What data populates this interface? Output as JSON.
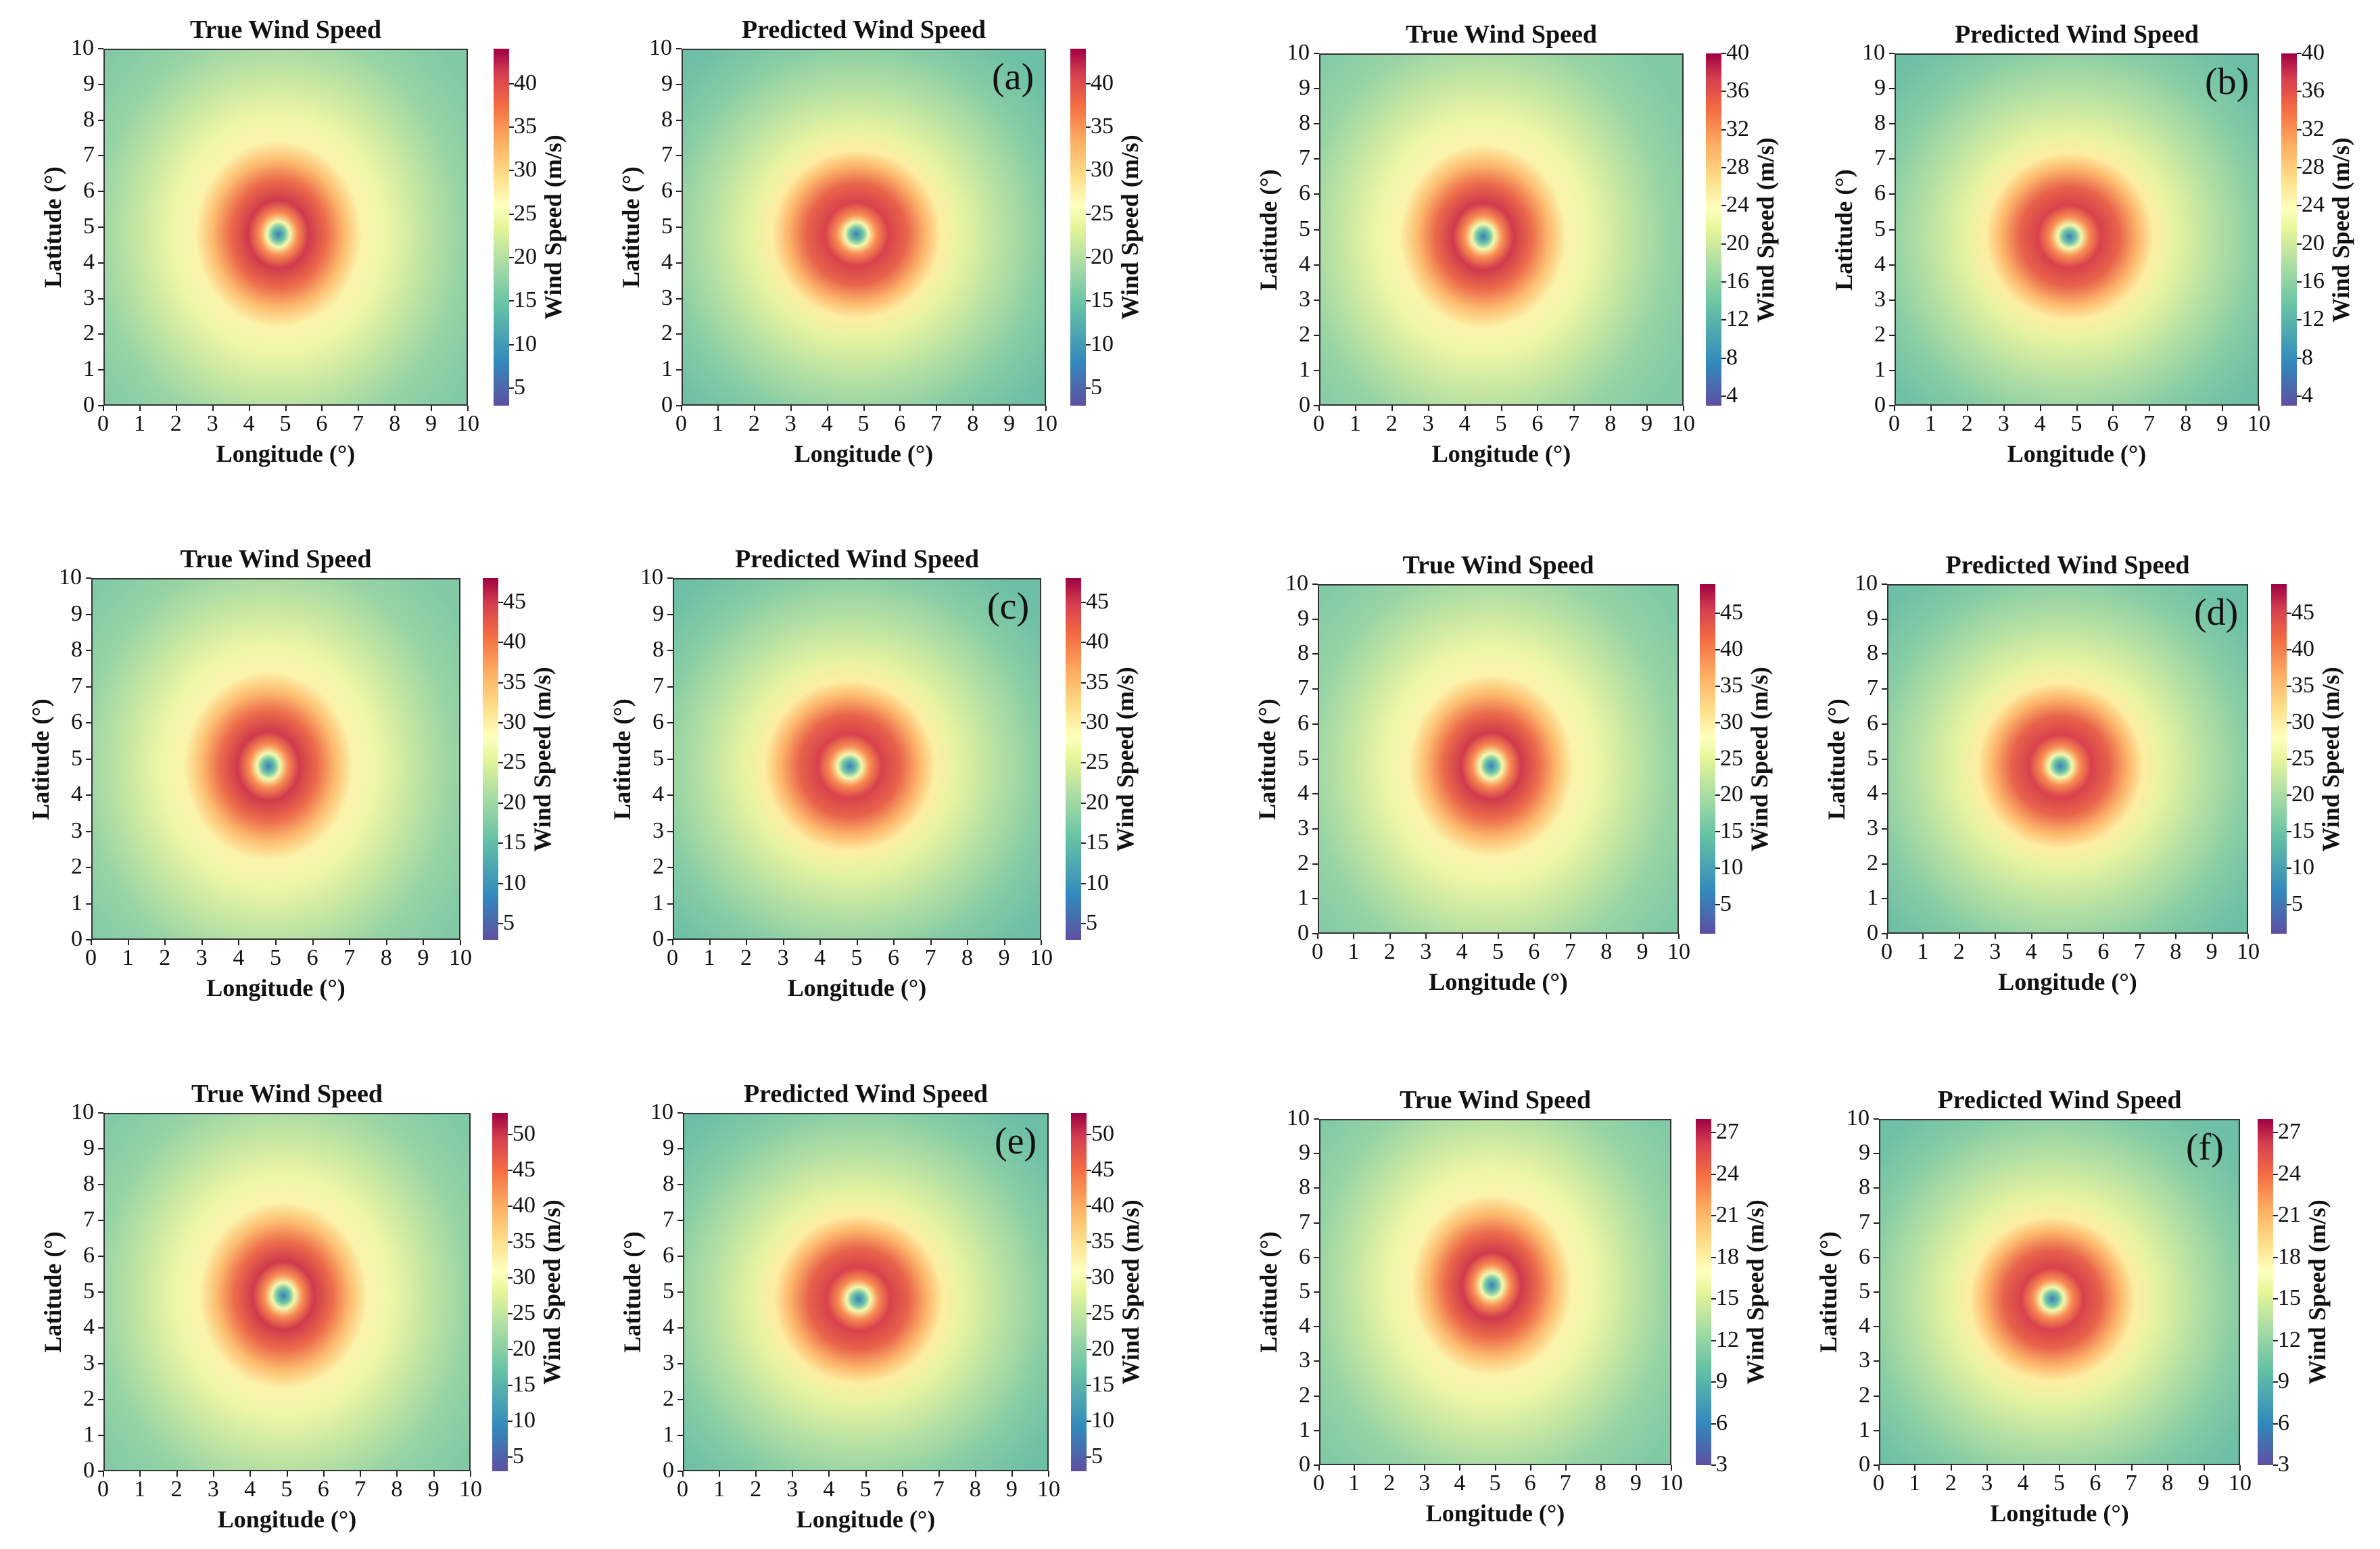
{
  "axis_labels": {
    "x": "Longitude (°)",
    "y": "Latitude (°)",
    "colorbar": "Wind Speed (m/s)"
  },
  "chart_data": [
    {
      "type": "heatmap",
      "panel": "(a)",
      "title": "True Wind Speed",
      "xlim": [
        0,
        10
      ],
      "ylim": [
        0,
        10
      ],
      "xticks": [
        "0",
        "1",
        "2",
        "3",
        "4",
        "5",
        "6",
        "7",
        "8",
        "9",
        "10"
      ],
      "yticks": [
        "0",
        "1",
        "2",
        "3",
        "4",
        "5",
        "6",
        "7",
        "8",
        "9",
        "10"
      ],
      "clim": [
        3,
        44
      ],
      "cticks": [
        "5",
        "10",
        "15",
        "20",
        "25",
        "30",
        "35",
        "40"
      ],
      "storm_center": [
        4.8,
        4.8
      ]
    },
    {
      "type": "heatmap",
      "panel": "(a)",
      "title": "Predicted Wind Speed",
      "label": "(a)",
      "xlim": [
        0,
        10
      ],
      "ylim": [
        0,
        10
      ],
      "xticks": [
        "0",
        "1",
        "2",
        "3",
        "4",
        "5",
        "6",
        "7",
        "8",
        "9",
        "10"
      ],
      "yticks": [
        "0",
        "1",
        "2",
        "3",
        "4",
        "5",
        "6",
        "7",
        "8",
        "9",
        "10"
      ],
      "clim": [
        3,
        44
      ],
      "cticks": [
        "5",
        "10",
        "15",
        "20",
        "25",
        "30",
        "35",
        "40"
      ],
      "storm_center": [
        4.8,
        4.8
      ]
    },
    {
      "type": "heatmap",
      "panel": "(b)",
      "title": "True Wind Speed",
      "xlim": [
        0,
        10
      ],
      "ylim": [
        0,
        10
      ],
      "xticks": [
        "0",
        "1",
        "2",
        "3",
        "4",
        "5",
        "6",
        "7",
        "8",
        "9",
        "10"
      ],
      "yticks": [
        "0",
        "1",
        "2",
        "3",
        "4",
        "5",
        "6",
        "7",
        "8",
        "9",
        "10"
      ],
      "clim": [
        3,
        40
      ],
      "cticks": [
        "4",
        "8",
        "12",
        "16",
        "20",
        "24",
        "28",
        "32",
        "36",
        "40"
      ],
      "storm_center": [
        4.5,
        4.8
      ]
    },
    {
      "type": "heatmap",
      "panel": "(b)",
      "title": "Predicted Wind Speed",
      "label": "(b)",
      "xlim": [
        0,
        10
      ],
      "ylim": [
        0,
        10
      ],
      "xticks": [
        "0",
        "1",
        "2",
        "3",
        "4",
        "5",
        "6",
        "7",
        "8",
        "9",
        "10"
      ],
      "yticks": [
        "0",
        "1",
        "2",
        "3",
        "4",
        "5",
        "6",
        "7",
        "8",
        "9",
        "10"
      ],
      "clim": [
        3,
        40
      ],
      "cticks": [
        "4",
        "8",
        "12",
        "16",
        "20",
        "24",
        "28",
        "32",
        "36",
        "40"
      ],
      "storm_center": [
        4.8,
        4.8
      ]
    },
    {
      "type": "heatmap",
      "panel": "(c)",
      "title": "True Wind Speed",
      "xlim": [
        0,
        10
      ],
      "ylim": [
        0,
        10
      ],
      "xticks": [
        "0",
        "1",
        "2",
        "3",
        "4",
        "5",
        "6",
        "7",
        "8",
        "9",
        "10"
      ],
      "yticks": [
        "0",
        "1",
        "2",
        "3",
        "4",
        "5",
        "6",
        "7",
        "8",
        "9",
        "10"
      ],
      "clim": [
        3,
        48
      ],
      "cticks": [
        "5",
        "10",
        "15",
        "20",
        "25",
        "30",
        "35",
        "40",
        "45"
      ],
      "storm_center": [
        4.8,
        4.8
      ]
    },
    {
      "type": "heatmap",
      "panel": "(c)",
      "title": "Predicted Wind Speed",
      "label": "(c)",
      "xlim": [
        0,
        10
      ],
      "ylim": [
        0,
        10
      ],
      "xticks": [
        "0",
        "1",
        "2",
        "3",
        "4",
        "5",
        "6",
        "7",
        "8",
        "9",
        "10"
      ],
      "yticks": [
        "0",
        "1",
        "2",
        "3",
        "4",
        "5",
        "6",
        "7",
        "8",
        "9",
        "10"
      ],
      "clim": [
        3,
        48
      ],
      "cticks": [
        "5",
        "10",
        "15",
        "20",
        "25",
        "30",
        "35",
        "40",
        "45"
      ],
      "storm_center": [
        4.8,
        4.8
      ]
    },
    {
      "type": "heatmap",
      "panel": "(d)",
      "title": "True Wind Speed",
      "xlim": [
        0,
        10
      ],
      "ylim": [
        0,
        10
      ],
      "xticks": [
        "0",
        "1",
        "2",
        "3",
        "4",
        "5",
        "6",
        "7",
        "8",
        "9",
        "10"
      ],
      "yticks": [
        "0",
        "1",
        "2",
        "3",
        "4",
        "5",
        "6",
        "7",
        "8",
        "9",
        "10"
      ],
      "clim": [
        1,
        49
      ],
      "cticks": [
        "5",
        "10",
        "15",
        "20",
        "25",
        "30",
        "35",
        "40",
        "45"
      ],
      "storm_center": [
        4.8,
        4.8
      ]
    },
    {
      "type": "heatmap",
      "panel": "(d)",
      "title": "Predicted Wind Speed",
      "label": "(d)",
      "xlim": [
        0,
        10
      ],
      "ylim": [
        0,
        10
      ],
      "xticks": [
        "0",
        "1",
        "2",
        "3",
        "4",
        "5",
        "6",
        "7",
        "8",
        "9",
        "10"
      ],
      "yticks": [
        "0",
        "1",
        "2",
        "3",
        "4",
        "5",
        "6",
        "7",
        "8",
        "9",
        "10"
      ],
      "clim": [
        1,
        49
      ],
      "cticks": [
        "5",
        "10",
        "15",
        "20",
        "25",
        "30",
        "35",
        "40",
        "45"
      ],
      "storm_center": [
        4.8,
        4.8
      ]
    },
    {
      "type": "heatmap",
      "panel": "(e)",
      "title": "True Wind Speed",
      "xlim": [
        0,
        10
      ],
      "ylim": [
        0,
        10
      ],
      "xticks": [
        "0",
        "1",
        "2",
        "3",
        "4",
        "5",
        "6",
        "7",
        "8",
        "9",
        "10"
      ],
      "yticks": [
        "0",
        "1",
        "2",
        "3",
        "4",
        "5",
        "6",
        "7",
        "8",
        "9",
        "10"
      ],
      "clim": [
        3,
        53
      ],
      "cticks": [
        "5",
        "10",
        "15",
        "20",
        "25",
        "30",
        "35",
        "40",
        "45",
        "50"
      ],
      "storm_center": [
        4.9,
        4.9
      ]
    },
    {
      "type": "heatmap",
      "panel": "(e)",
      "title": "Predicted Wind Speed",
      "label": "(e)",
      "xlim": [
        0,
        10
      ],
      "ylim": [
        0,
        10
      ],
      "xticks": [
        "0",
        "1",
        "2",
        "3",
        "4",
        "5",
        "6",
        "7",
        "8",
        "9",
        "10"
      ],
      "yticks": [
        "0",
        "1",
        "2",
        "3",
        "4",
        "5",
        "6",
        "7",
        "8",
        "9",
        "10"
      ],
      "clim": [
        3,
        53
      ],
      "cticks": [
        "5",
        "10",
        "15",
        "20",
        "25",
        "30",
        "35",
        "40",
        "45",
        "50"
      ],
      "storm_center": [
        4.8,
        4.8
      ]
    },
    {
      "type": "heatmap",
      "panel": "(f)",
      "title": "True Wind Speed",
      "xlim": [
        0,
        10
      ],
      "ylim": [
        0,
        10
      ],
      "xticks": [
        "0",
        "1",
        "2",
        "3",
        "4",
        "5",
        "6",
        "7",
        "8",
        "9",
        "10"
      ],
      "yticks": [
        "0",
        "1",
        "2",
        "3",
        "4",
        "5",
        "6",
        "7",
        "8",
        "9",
        "10"
      ],
      "clim": [
        3,
        28
      ],
      "cticks": [
        "3",
        "6",
        "9",
        "12",
        "15",
        "18",
        "21",
        "24",
        "27"
      ],
      "storm_center": [
        4.9,
        5.2
      ]
    },
    {
      "type": "heatmap",
      "panel": "(f)",
      "title": "Predicted Wind Speed",
      "label": "(f)",
      "xlim": [
        0,
        10
      ],
      "ylim": [
        0,
        10
      ],
      "xticks": [
        "0",
        "1",
        "2",
        "3",
        "4",
        "5",
        "6",
        "7",
        "8",
        "9",
        "10"
      ],
      "yticks": [
        "0",
        "1",
        "2",
        "3",
        "4",
        "5",
        "6",
        "7",
        "8",
        "9",
        "10"
      ],
      "clim": [
        3,
        28
      ],
      "cticks": [
        "3",
        "6",
        "9",
        "12",
        "15",
        "18",
        "21",
        "24",
        "27"
      ],
      "storm_center": [
        4.8,
        4.8
      ]
    }
  ]
}
